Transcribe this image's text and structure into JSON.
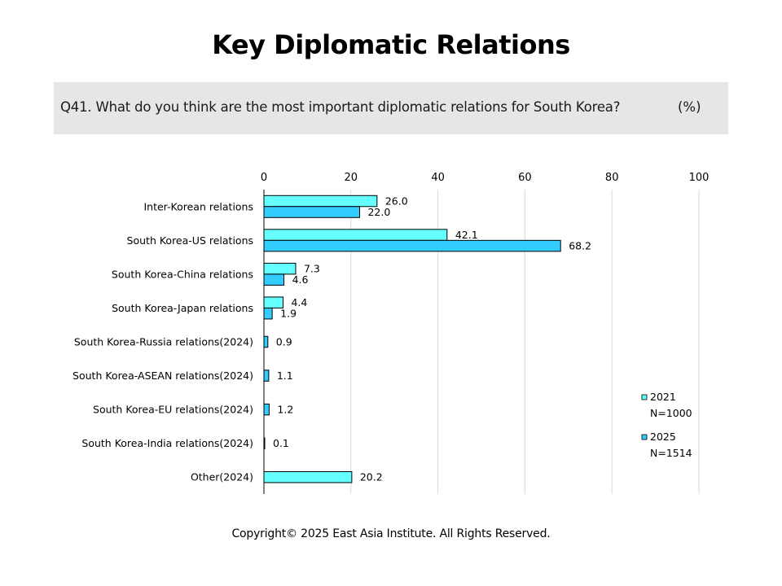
{
  "title": "Key Diplomatic Relations",
  "question": "Q41. What do you think are the most important diplomatic relations for South Korea?",
  "unit": "(%)",
  "copyright": "Copyright© 2025 East Asia Institute. All Rights Reserved.",
  "colors": {
    "series_2021": "#66ffff",
    "series_2025": "#33ccff",
    "grid": "#d9d9d9",
    "bar_stroke": "#000000"
  },
  "chart_data": {
    "type": "bar",
    "orientation": "horizontal",
    "title": "",
    "xlabel": "",
    "ylabel": "",
    "xlim": [
      0,
      100
    ],
    "ticks": [
      "0",
      "20",
      "40",
      "60",
      "80",
      "100"
    ],
    "tick_values": [
      0,
      20,
      40,
      60,
      80,
      100
    ],
    "grid": true,
    "legend_position": "bottom-right",
    "categories": [
      "Inter-Korean relations",
      "South Korea-US relations",
      "South Korea-China relations",
      "South Korea-Japan relations",
      "South Korea-Russia relations(2024)",
      "South Korea-ASEAN relations(2024)",
      "South Korea-EU relations(2024)",
      "South Korea-India relations(2024)",
      "Other(2024)"
    ],
    "series": [
      {
        "name": "2021",
        "legend_sub": "N=1000",
        "values": [
          26.0,
          42.1,
          7.3,
          4.4,
          null,
          null,
          null,
          null,
          20.2
        ],
        "labels": [
          "26.0",
          "42.1",
          "7.3",
          "4.4",
          null,
          null,
          null,
          null,
          "20.2"
        ]
      },
      {
        "name": "2025",
        "legend_sub": "N=1514",
        "values": [
          22.0,
          68.2,
          4.6,
          1.9,
          0.9,
          1.1,
          1.2,
          0.1,
          null
        ],
        "labels": [
          "22.0",
          "68.2",
          "4.6",
          "1.9",
          "0.9",
          "1.1",
          "1.2",
          "0.1",
          null
        ]
      }
    ]
  }
}
